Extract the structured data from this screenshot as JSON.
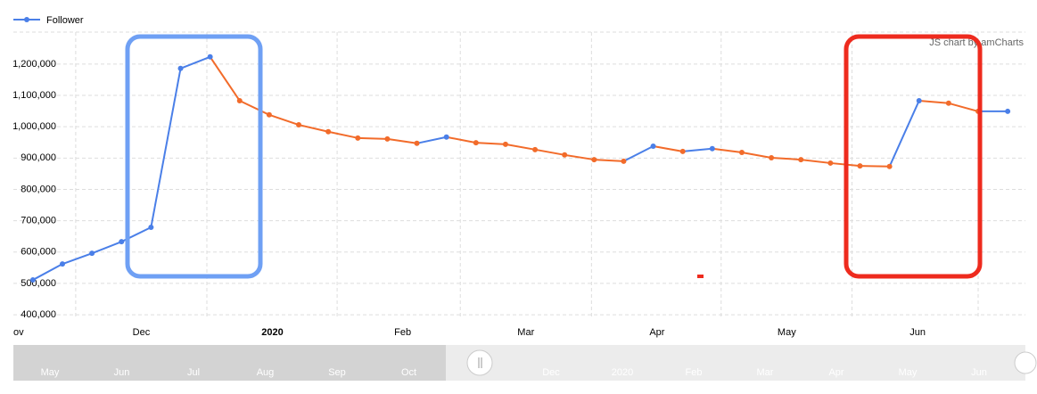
{
  "chart_data": {
    "type": "line",
    "legend": "Follower",
    "credit": "JS chart by amCharts",
    "series": [
      {
        "name": "Follower",
        "color": "#4a7fe8",
        "decrease_color": "#f26b2a",
        "values": [
          511000,
          562000,
          596000,
          633000,
          679000,
          1186000,
          1223000,
          1083000,
          1038000,
          1006000,
          984000,
          964000,
          961000,
          947000,
          967000,
          949000,
          944000,
          927000,
          910000,
          895000,
          890000,
          938000,
          921000,
          930000,
          918000,
          901000,
          895000,
          884000,
          875000,
          873000,
          1083000,
          1075000,
          1049000,
          1049000
        ]
      }
    ],
    "xlim": [
      -0.66,
      33.6
    ],
    "xticks": [
      {
        "value": -2.99,
        "label": "ov"
      },
      {
        "value": 1.45,
        "label": "Dec"
      },
      {
        "value": 5.89,
        "label": "2020"
      },
      {
        "value": 10.3,
        "label": "Feb"
      },
      {
        "value": 14.47,
        "label": "Mar"
      },
      {
        "value": 18.91,
        "label": "Apr"
      },
      {
        "value": 23.3,
        "label": "May"
      },
      {
        "value": 27.73,
        "label": "Jun"
      },
      {
        "value": 32.0,
        "label": ""
      }
    ],
    "ylim": [
      386000,
      1302000
    ],
    "yticks": [
      {
        "value": 400000,
        "label": "400,000"
      },
      {
        "value": 500000,
        "label": "500,000"
      },
      {
        "value": 600000,
        "label": "600,000"
      },
      {
        "value": 700000,
        "label": "700,000"
      },
      {
        "value": 800000,
        "label": "800,000"
      },
      {
        "value": 900000,
        "label": "900,000"
      },
      {
        "value": 1000000,
        "label": "1,000,000"
      },
      {
        "value": 1100000,
        "label": "1,100,000"
      },
      {
        "value": 1200000,
        "label": "1,200,000"
      }
    ],
    "grid": true,
    "scrollbar": {
      "past_labels": [
        "May",
        "Jun",
        "Jul",
        "Aug",
        "Sep",
        "Oct"
      ],
      "labels": [
        "Dec",
        "2020",
        "Feb",
        "Mar",
        "Apr",
        "May",
        "Jun"
      ]
    }
  }
}
